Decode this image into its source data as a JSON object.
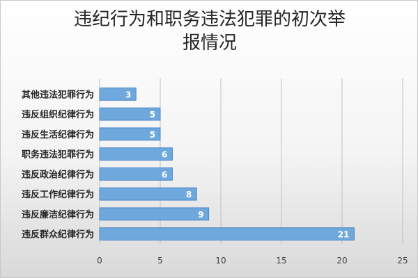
{
  "chart_data": {
    "type": "bar",
    "orientation": "horizontal",
    "title": "违纪行为和职务违法犯罪的初次举报情况",
    "xlabel": "",
    "ylabel": "",
    "categories": [
      "其他违法犯罪行为",
      "违反组织纪律行为",
      "违反生活纪律行为",
      "职务违法犯罪行为",
      "违反政治纪律行为",
      "违反工作纪律行为",
      "违反廉洁纪律行为",
      "违反群众纪律行为"
    ],
    "values": [
      3,
      5,
      5,
      6,
      6,
      8,
      9,
      21
    ],
    "xlim": [
      0,
      25
    ],
    "x_ticks": [
      "0",
      "5",
      "10",
      "15",
      "20",
      "25"
    ],
    "grid": "vertical",
    "legend": "none",
    "data_labels": "inside-end",
    "bar_color": "#6fa8dc",
    "bar_border_color": "#4a86c5",
    "label_color": "#ffffff",
    "grid_color": "#c0c0c0"
  }
}
